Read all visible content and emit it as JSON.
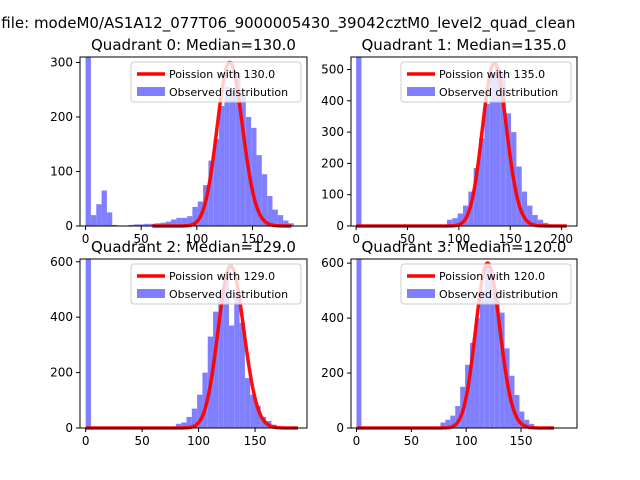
{
  "figure": {
    "suptitle": "n file: modeM0/AS1A12_077T06_9000005430_39042cztM0_level2_quad_clean",
    "colors": {
      "observed": "#8080ff",
      "poisson": "#ff0000",
      "axes": "#000000",
      "background": "#ffffff"
    }
  },
  "chart_data": [
    {
      "type": "bar",
      "title": "Quadrant 0: Median=130.0",
      "xlabel": "",
      "ylabel": "",
      "xlim": [
        -5,
        199
      ],
      "ylim": [
        0,
        310
      ],
      "xticks": [
        0,
        50,
        100,
        150
      ],
      "yticks": [
        0,
        100,
        200,
        300
      ],
      "grid": false,
      "legend_position": "top-right",
      "legend": [
        "Poission with 130.0",
        "Observed distribution"
      ],
      "bin_width": 4.8,
      "series": [
        {
          "name": "Observed distribution",
          "kind": "histogram",
          "bin_starts": [
            0,
            4.8,
            9.6,
            14.4,
            19.2,
            24,
            28.8,
            33.6,
            38.4,
            43.2,
            48,
            52.8,
            57.6,
            62.4,
            67.2,
            72,
            76.8,
            81.6,
            86.4,
            91.2,
            96,
            100.8,
            105.6,
            110.4,
            115.2,
            120,
            124.8,
            129.6,
            134.4,
            139.2,
            144,
            148.8,
            153.6,
            158.4,
            163.2,
            168,
            172.8,
            177.6,
            182.4
          ],
          "counts": [
            310,
            20,
            40,
            65,
            25,
            2,
            0,
            0,
            2,
            3,
            3,
            4,
            4,
            5,
            6,
            8,
            12,
            15,
            15,
            18,
            35,
            45,
            75,
            120,
            160,
            220,
            255,
            250,
            280,
            240,
            200,
            180,
            130,
            95,
            55,
            30,
            20,
            10,
            5
          ]
        },
        {
          "name": "Poission with 130.0",
          "kind": "line",
          "mean": 130.0,
          "x_range": [
            60,
            185
          ],
          "peak": 300
        }
      ]
    },
    {
      "type": "bar",
      "title": "Quadrant 1: Median=135.0",
      "xlabel": "",
      "ylabel": "",
      "xlim": [
        -5,
        215
      ],
      "ylim": [
        0,
        540
      ],
      "xticks": [
        0,
        50,
        100,
        150,
        200
      ],
      "yticks": [
        0,
        100,
        200,
        300,
        400,
        500
      ],
      "grid": false,
      "legend_position": "top-right",
      "legend": [
        "Poission with 135.0",
        "Observed distribution"
      ],
      "bin_width": 5.2,
      "series": [
        {
          "name": "Observed distribution",
          "kind": "histogram",
          "bin_starts": [
            0,
            5.2,
            10.4,
            15.6,
            20.8,
            26,
            31.2,
            36.4,
            41.6,
            46.8,
            52,
            57.2,
            62.4,
            67.6,
            72.8,
            78,
            83.2,
            88.4,
            93.6,
            98.8,
            104,
            109.2,
            114.4,
            119.6,
            124.8,
            130,
            135.2,
            140.4,
            145.6,
            150.8,
            156,
            161.2,
            166.4,
            171.6,
            176.8,
            182,
            187.2,
            192.4,
            197.6
          ],
          "counts": [
            540,
            0,
            0,
            0,
            0,
            0,
            0,
            0,
            0,
            0,
            0,
            0,
            0,
            0,
            0,
            0,
            2,
            20,
            25,
            40,
            65,
            110,
            185,
            280,
            390,
            490,
            505,
            490,
            360,
            300,
            190,
            110,
            65,
            35,
            20,
            10,
            5,
            2,
            0
          ]
        },
        {
          "name": "Poission with 135.0",
          "kind": "line",
          "mean": 135.0,
          "x_range": [
            0,
            205
          ],
          "peak": 520
        }
      ]
    },
    {
      "type": "bar",
      "title": "Quadrant 2: Median=129.0",
      "xlabel": "",
      "ylabel": "",
      "xlim": [
        -5,
        196
      ],
      "ylim": [
        0,
        610
      ],
      "xticks": [
        0,
        50,
        100,
        150
      ],
      "yticks": [
        0,
        200,
        400,
        600
      ],
      "grid": false,
      "legend_position": "top-right",
      "legend": [
        "Poission with 129.0",
        "Observed distribution"
      ],
      "bin_width": 4.7,
      "series": [
        {
          "name": "Observed distribution",
          "kind": "histogram",
          "bin_starts": [
            0,
            4.7,
            9.4,
            14.1,
            18.8,
            23.5,
            28.2,
            32.9,
            37.6,
            42.3,
            47,
            51.7,
            56.4,
            61.1,
            65.8,
            70.5,
            75.2,
            79.9,
            84.6,
            89.3,
            94,
            98.7,
            103.4,
            108.1,
            112.8,
            117.5,
            122.2,
            126.9,
            131.6,
            136.3,
            141,
            145.7,
            150.4,
            155.1,
            159.8,
            164.5,
            169.2,
            173.9,
            178.6
          ],
          "counts": [
            610,
            0,
            0,
            0,
            0,
            0,
            0,
            0,
            0,
            0,
            0,
            0,
            0,
            0,
            0,
            0,
            2,
            15,
            20,
            40,
            70,
            120,
            200,
            330,
            420,
            500,
            560,
            370,
            490,
            380,
            180,
            120,
            80,
            40,
            25,
            12,
            5,
            2,
            0
          ]
        },
        {
          "name": "Poission with 129.0",
          "kind": "line",
          "mean": 129.0,
          "x_range": [
            0,
            188
          ],
          "peak": 585
        }
      ]
    },
    {
      "type": "bar",
      "title": "Quadrant 3: Median=120.0",
      "xlabel": "",
      "ylabel": "",
      "xlim": [
        -5,
        201
      ],
      "ylim": [
        0,
        615
      ],
      "xticks": [
        0,
        50,
        100,
        150
      ],
      "yticks": [
        0,
        200,
        400,
        600
      ],
      "grid": false,
      "legend_position": "top-right",
      "legend": [
        "Poission with 120.0",
        "Observed distribution"
      ],
      "bin_width": 4.5,
      "series": [
        {
          "name": "Observed distribution",
          "kind": "histogram",
          "bin_starts": [
            0,
            4.5,
            9,
            13.5,
            18,
            22.5,
            27,
            31.5,
            36,
            40.5,
            45,
            49.5,
            54,
            58.5,
            63,
            67.5,
            72,
            76.5,
            81,
            85.5,
            90,
            94.5,
            99,
            103.5,
            108,
            112.5,
            117,
            121.5,
            126,
            130.5,
            135,
            139.5,
            144,
            148.5,
            153,
            157.5,
            162,
            166.5,
            171
          ],
          "counts": [
            615,
            0,
            0,
            0,
            0,
            0,
            0,
            0,
            0,
            0,
            0,
            0,
            0,
            0,
            0,
            0,
            5,
            20,
            30,
            45,
            80,
            150,
            230,
            310,
            400,
            490,
            590,
            560,
            500,
            420,
            290,
            190,
            120,
            60,
            30,
            15,
            5,
            2,
            0
          ]
        },
        {
          "name": "Poission with 120.0",
          "kind": "line",
          "mean": 120.0,
          "x_range": [
            0,
            180
          ],
          "peak": 600
        }
      ]
    }
  ]
}
